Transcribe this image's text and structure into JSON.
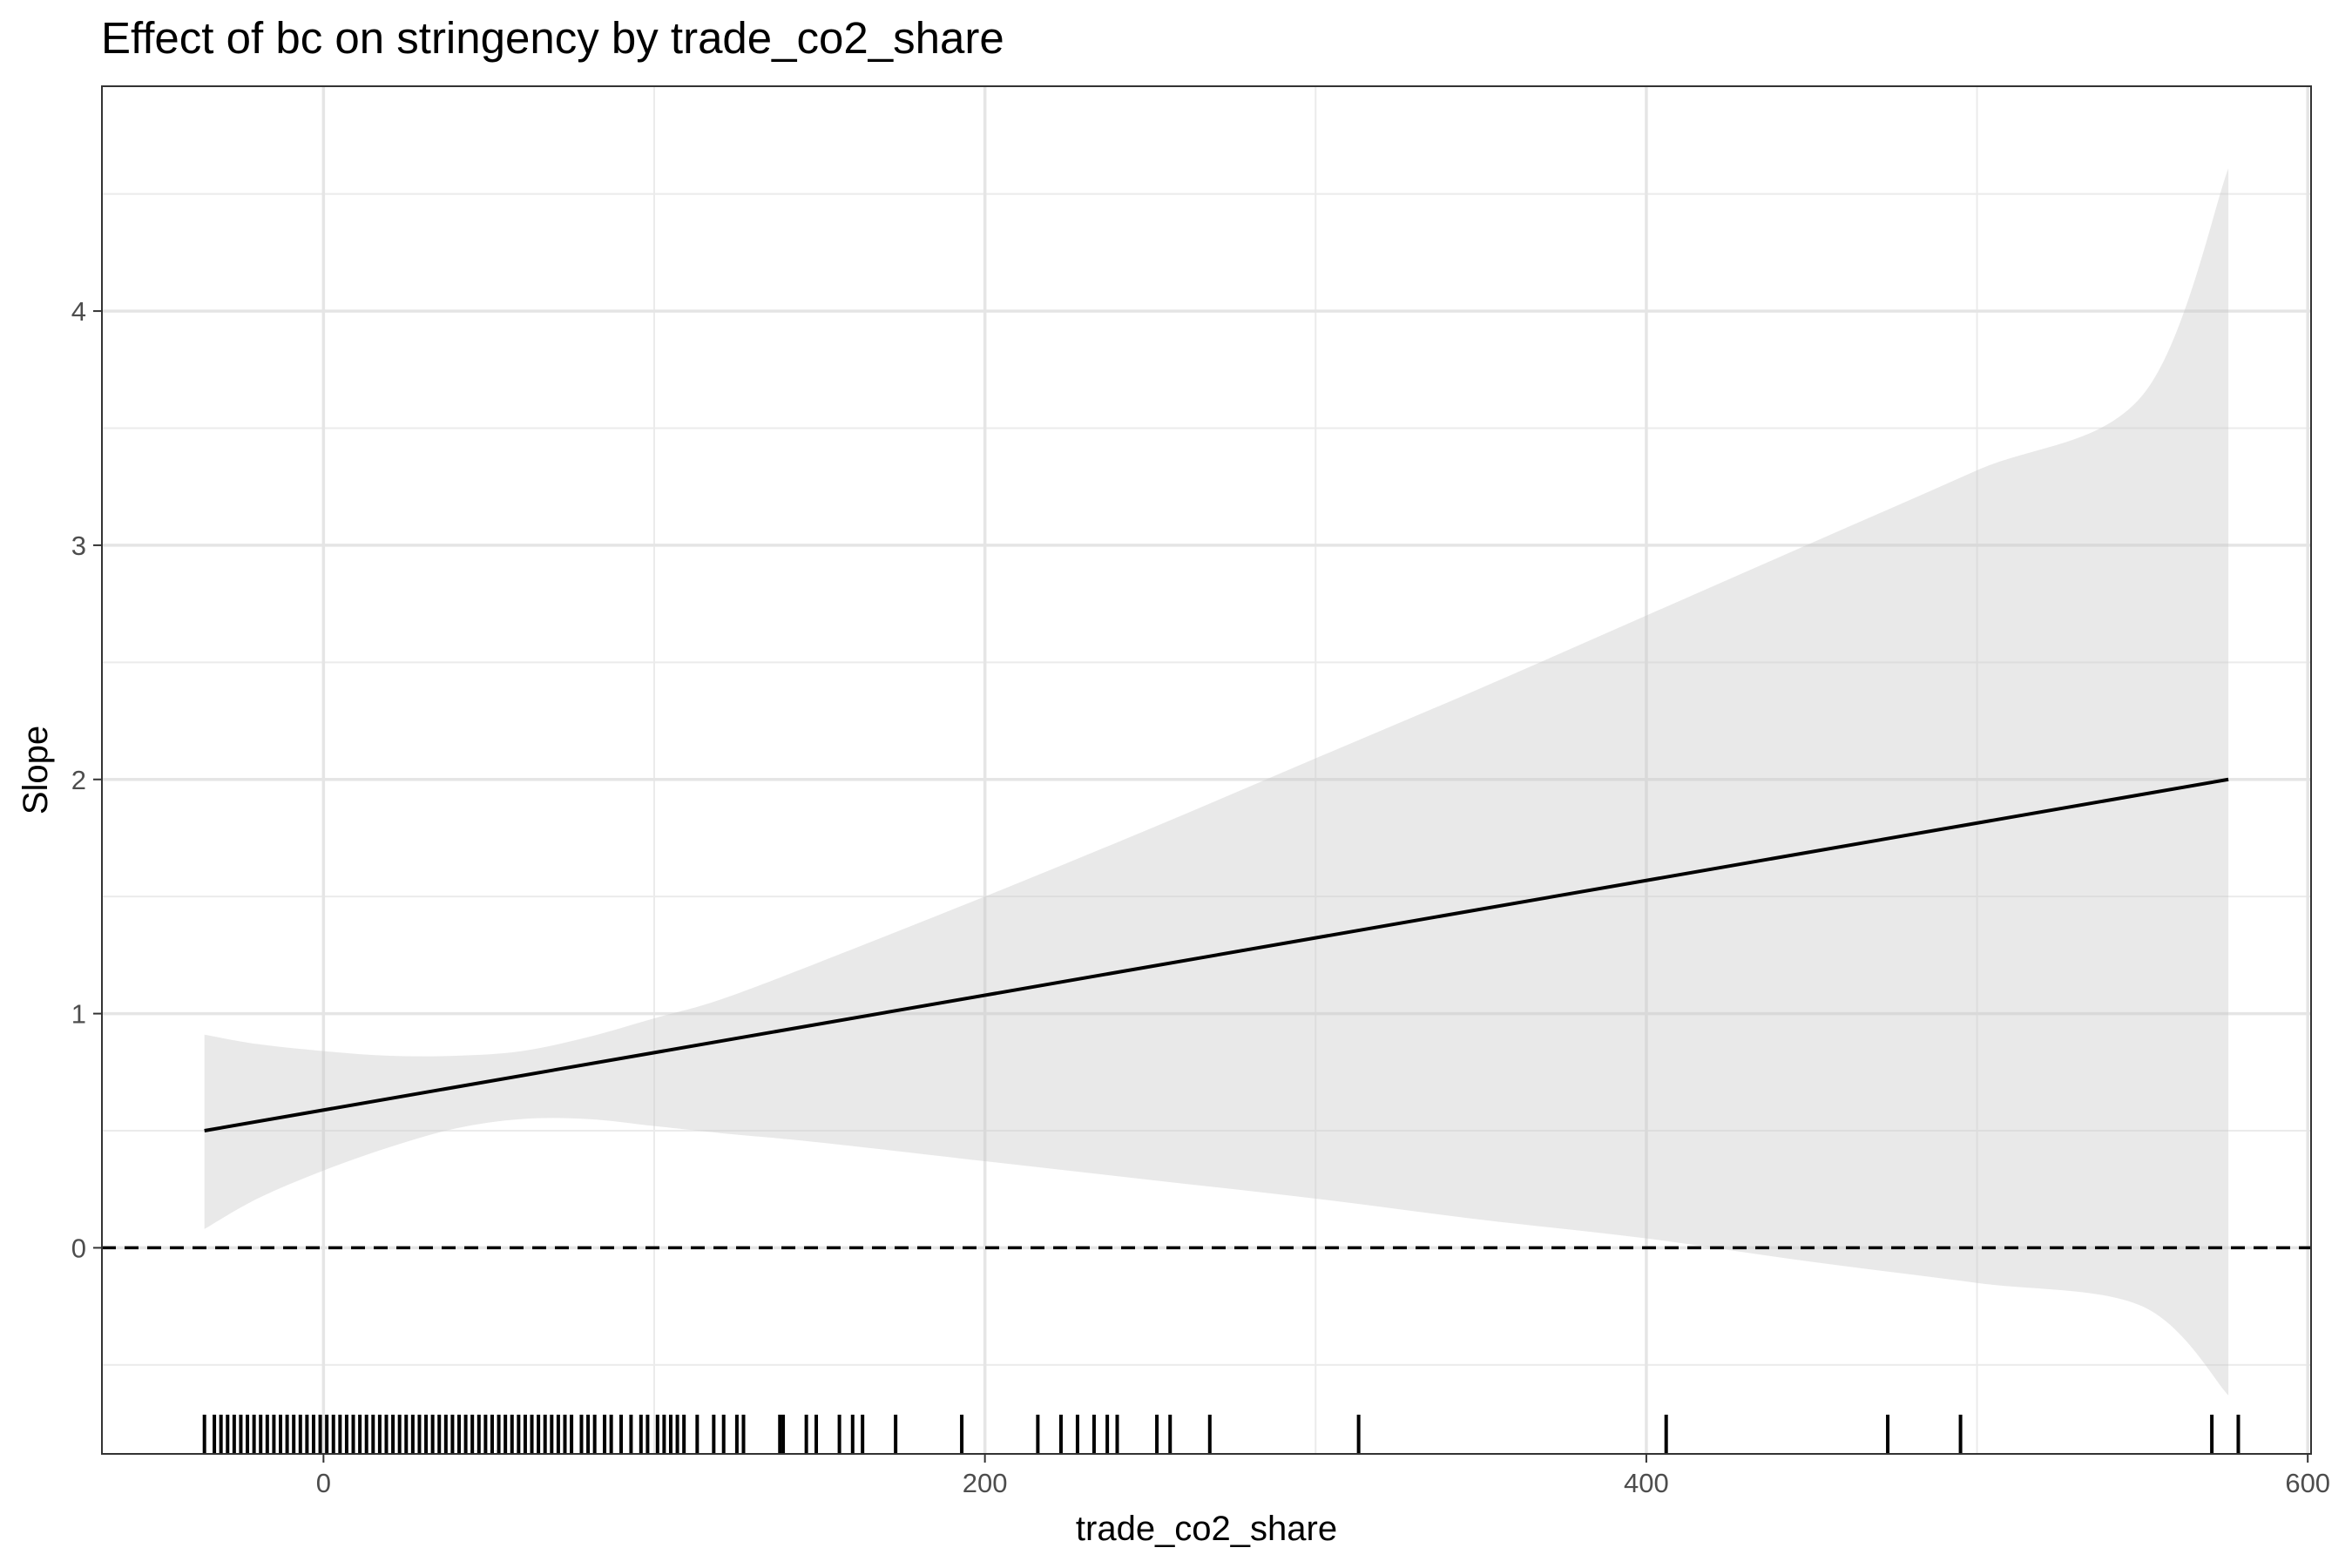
{
  "chart_data": {
    "type": "line",
    "title": "Effect of bc on stringency by trade_co2_share",
    "xlabel": "trade_co2_share",
    "ylabel": "Slope",
    "xlim": [
      -67,
      601
    ],
    "ylim": [
      -0.88,
      4.96
    ],
    "x_ticks": [
      0,
      200,
      400,
      600
    ],
    "y_ticks": [
      0,
      1,
      2,
      3,
      4
    ],
    "grid": true,
    "legend": "none",
    "reference_line": {
      "y": 0,
      "style": "dashed"
    },
    "series": [
      {
        "x": [
          -36,
          576
        ],
        "values": [
          0.5,
          2.0
        ]
      }
    ],
    "confidence_band": {
      "x": [
        -36,
        -20,
        0,
        20,
        40,
        60,
        80,
        100,
        120,
        150,
        200,
        250,
        300,
        350,
        400,
        450,
        500,
        550,
        576
      ],
      "upper": [
        0.91,
        0.87,
        0.84,
        0.82,
        0.82,
        0.84,
        0.9,
        0.98,
        1.06,
        1.22,
        1.5,
        1.79,
        2.09,
        2.39,
        2.7,
        3.01,
        3.32,
        3.64,
        4.61
      ],
      "lower": [
        0.08,
        0.21,
        0.33,
        0.43,
        0.51,
        0.55,
        0.55,
        0.52,
        0.49,
        0.45,
        0.37,
        0.29,
        0.21,
        0.12,
        0.04,
        -0.06,
        -0.15,
        -0.25,
        -0.63
      ]
    },
    "rug_x": [
      -36,
      -33,
      -31,
      -29,
      -27,
      -25,
      -23,
      -21,
      -19,
      -17,
      -15,
      -13,
      -11,
      -9,
      -7,
      -5,
      -3,
      -1,
      1,
      3,
      5,
      7,
      9,
      11,
      13,
      15,
      17,
      19,
      21,
      23,
      25,
      27,
      29,
      31,
      33,
      35,
      37,
      39,
      41,
      43,
      45,
      47,
      49,
      51,
      53,
      55,
      57,
      59,
      61,
      63,
      65,
      67,
      69,
      71,
      73,
      75,
      78,
      80,
      82,
      85,
      87,
      90,
      93,
      96,
      98,
      101,
      103,
      105,
      107,
      109,
      113,
      118,
      121,
      125,
      127,
      138,
      139,
      146,
      149,
      156,
      160,
      163,
      173,
      193,
      216,
      223,
      228,
      233,
      237,
      240,
      252,
      256,
      268,
      313,
      406,
      473,
      495,
      571,
      579
    ]
  }
}
